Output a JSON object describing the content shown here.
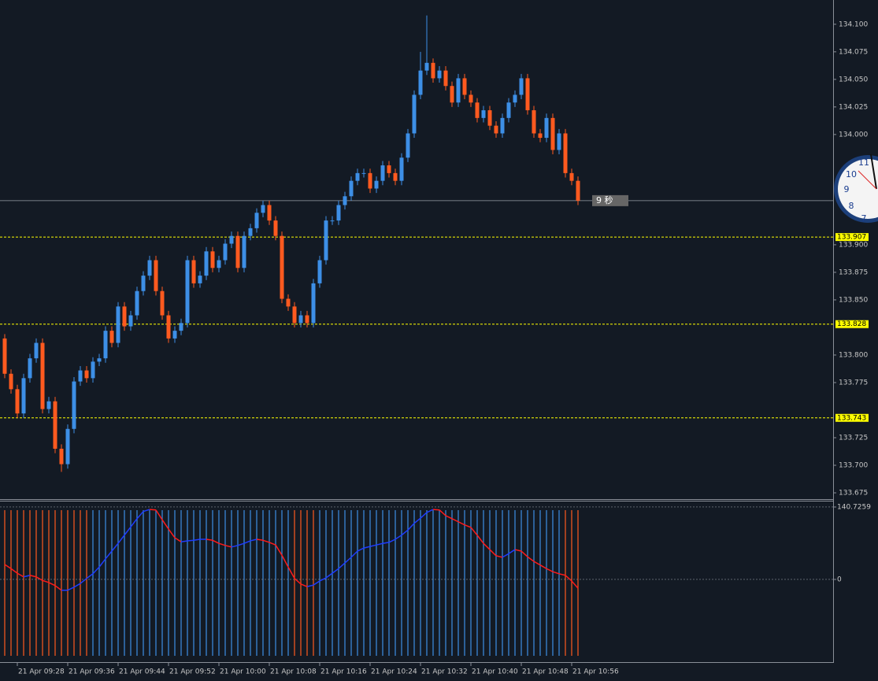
{
  "chart_data": [
    {
      "type": "candlestick",
      "categories": [
        null,
        null,
        "21 Apr 09:28",
        null,
        null,
        null,
        null,
        null,
        null,
        null,
        "21 Apr 09:36",
        null,
        null,
        null,
        null,
        null,
        null,
        null,
        "21 Apr 09:44",
        null,
        null,
        null,
        null,
        null,
        null,
        null,
        "21 Apr 09:52",
        null,
        null,
        null,
        null,
        null,
        null,
        null,
        "21 Apr 10:00",
        null,
        null,
        null,
        null,
        null,
        null,
        null,
        "21 Apr 10:08",
        null,
        null,
        null,
        null,
        null,
        null,
        null,
        "21 Apr 10:16",
        null,
        null,
        null,
        null,
        null,
        null,
        null,
        "21 Apr 10:24",
        null,
        null,
        null,
        null,
        null,
        null,
        null,
        "21 Apr 10:32",
        null,
        null,
        null,
        null,
        null,
        null,
        null,
        "21 Apr 10:40",
        null,
        null,
        null,
        null,
        null,
        null,
        null,
        "21 Apr 10:48",
        null,
        null,
        null,
        null,
        null,
        null,
        null,
        "21 Apr 10:56",
        null
      ],
      "open": [
        133.815,
        133.783,
        133.769,
        133.747,
        133.779,
        133.797,
        133.811,
        133.751,
        133.758,
        133.715,
        133.701,
        133.733,
        133.776,
        133.786,
        133.779,
        133.794,
        133.797,
        133.822,
        133.811,
        133.844,
        133.826,
        133.836,
        133.858,
        133.872,
        133.886,
        133.858,
        133.836,
        133.815,
        133.822,
        133.829,
        133.886,
        133.865,
        133.872,
        133.894,
        133.879,
        133.886,
        133.901,
        133.908,
        133.879,
        133.908,
        133.915,
        133.929,
        133.936,
        133.922,
        133.908,
        133.851,
        133.844,
        133.829,
        133.836,
        133.829,
        133.865,
        133.886,
        133.922,
        133.922,
        133.936,
        133.944,
        133.958,
        133.965,
        133.965,
        133.951,
        133.958,
        133.972,
        133.965,
        133.958,
        133.979,
        134.001,
        134.036,
        134.058,
        134.065,
        134.051,
        134.058,
        134.044,
        134.029,
        134.051,
        134.036,
        134.029,
        134.015,
        134.022,
        134.008,
        134.001,
        134.015,
        134.029,
        134.036,
        134.051,
        134.022,
        134.001,
        133.997,
        134.015,
        133.986,
        134.001,
        133.965,
        133.958
      ],
      "high": [
        133.819,
        133.787,
        133.773,
        133.783,
        133.801,
        133.815,
        133.815,
        133.762,
        133.762,
        133.719,
        133.737,
        133.78,
        133.79,
        133.79,
        133.798,
        133.801,
        133.826,
        133.826,
        133.848,
        133.848,
        133.84,
        133.862,
        133.876,
        133.89,
        133.89,
        133.862,
        133.84,
        133.826,
        133.833,
        133.89,
        133.89,
        133.876,
        133.898,
        133.898,
        133.89,
        133.905,
        133.912,
        133.912,
        133.912,
        133.919,
        133.933,
        133.94,
        133.94,
        133.926,
        133.912,
        133.855,
        133.848,
        133.84,
        133.84,
        133.869,
        133.89,
        133.926,
        133.926,
        133.94,
        133.948,
        133.962,
        133.969,
        133.969,
        133.969,
        133.962,
        133.976,
        133.976,
        133.969,
        133.983,
        134.005,
        134.04,
        134.075,
        134.108,
        134.069,
        134.062,
        134.062,
        134.048,
        134.055,
        134.055,
        134.04,
        134.033,
        134.026,
        134.026,
        134.012,
        134.019,
        134.033,
        134.04,
        134.055,
        134.055,
        134.026,
        134.005,
        134.019,
        134.019,
        134.005,
        134.005,
        133.969,
        133.962
      ],
      "low": [
        133.779,
        133.765,
        133.743,
        133.743,
        133.775,
        133.793,
        133.747,
        133.747,
        133.711,
        133.694,
        133.697,
        133.729,
        133.772,
        133.775,
        133.775,
        133.79,
        133.793,
        133.807,
        133.807,
        133.822,
        133.822,
        133.832,
        133.854,
        133.868,
        133.854,
        133.832,
        133.811,
        133.811,
        133.818,
        133.825,
        133.861,
        133.861,
        133.868,
        133.875,
        133.875,
        133.882,
        133.897,
        133.875,
        133.875,
        133.904,
        133.911,
        133.925,
        133.918,
        133.904,
        133.847,
        133.84,
        133.825,
        133.825,
        133.825,
        133.825,
        133.861,
        133.882,
        133.918,
        133.918,
        133.932,
        133.94,
        133.954,
        133.961,
        133.947,
        133.947,
        133.954,
        133.961,
        133.954,
        133.954,
        133.975,
        133.997,
        134.032,
        134.054,
        134.047,
        134.047,
        134.04,
        134.025,
        134.025,
        134.032,
        134.025,
        134.011,
        134.011,
        134.004,
        133.997,
        133.997,
        134.011,
        134.025,
        134.032,
        134.018,
        133.997,
        133.993,
        133.993,
        133.982,
        133.982,
        133.961,
        133.954,
        133.936
      ],
      "close": [
        133.783,
        133.769,
        133.747,
        133.779,
        133.797,
        133.811,
        133.751,
        133.758,
        133.715,
        133.701,
        133.733,
        133.776,
        133.786,
        133.779,
        133.794,
        133.797,
        133.822,
        133.811,
        133.844,
        133.826,
        133.836,
        133.858,
        133.872,
        133.886,
        133.858,
        133.836,
        133.815,
        133.822,
        133.829,
        133.886,
        133.865,
        133.872,
        133.894,
        133.879,
        133.886,
        133.901,
        133.908,
        133.879,
        133.908,
        133.915,
        133.929,
        133.936,
        133.922,
        133.908,
        133.851,
        133.844,
        133.829,
        133.836,
        133.829,
        133.865,
        133.886,
        133.922,
        133.922,
        133.936,
        133.944,
        133.958,
        133.965,
        133.965,
        133.951,
        133.958,
        133.972,
        133.965,
        133.958,
        133.979,
        134.001,
        134.036,
        134.058,
        134.065,
        134.051,
        134.058,
        134.044,
        134.029,
        134.051,
        134.036,
        134.029,
        134.015,
        134.022,
        134.008,
        134.001,
        134.015,
        134.029,
        134.036,
        134.051,
        134.022,
        134.001,
        133.997,
        134.015,
        133.986,
        134.001,
        133.965,
        133.958,
        133.94
      ],
      "up_color": "#3d8fe6",
      "down_color": "#ff5a1f",
      "ylim": [
        133.67,
        134.122
      ],
      "yticks": [
        {
          "value": 134.1,
          "label": "134.100"
        },
        {
          "value": 134.075,
          "label": "134.075"
        },
        {
          "value": 134.05,
          "label": "134.050"
        },
        {
          "value": 134.025,
          "label": "134.025"
        },
        {
          "value": 134,
          "label": "134.000"
        },
        {
          "value": 133.9,
          "label": "133.900"
        },
        {
          "value": 133.875,
          "label": "133.875"
        },
        {
          "value": 133.85,
          "label": "133.850"
        },
        {
          "value": 133.8,
          "label": "133.800"
        },
        {
          "value": 133.775,
          "label": "133.775"
        },
        {
          "value": 133.725,
          "label": "133.725"
        },
        {
          "value": 133.7,
          "label": "133.700"
        },
        {
          "value": 133.675,
          "label": "133.675"
        }
      ],
      "levels": [
        {
          "value": 133.907,
          "label": "133.907"
        },
        {
          "value": 133.828,
          "label": "133.828"
        },
        {
          "value": 133.743,
          "label": "133.743"
        }
      ],
      "level_color": "#ffff00",
      "countdown_label": "9 秒"
    },
    {
      "type": "oscillator",
      "values": [
        29,
        21,
        12,
        5,
        8,
        5,
        -2,
        -6,
        -12,
        -21,
        -21,
        -15,
        -8,
        2,
        11,
        24,
        40,
        55,
        70,
        86,
        102,
        118,
        132,
        136,
        135,
        116,
        98,
        81,
        73,
        75,
        76,
        78,
        78,
        76,
        70,
        66,
        63,
        66,
        70,
        75,
        78,
        76,
        72,
        67,
        47,
        24,
        2,
        -9,
        -14,
        -11,
        -3,
        3,
        12,
        21,
        32,
        43,
        55,
        61,
        64,
        67,
        70,
        72,
        78,
        86,
        96,
        109,
        119,
        130,
        136,
        135,
        124,
        118,
        112,
        106,
        101,
        86,
        70,
        58,
        46,
        43,
        50,
        58,
        55,
        44,
        35,
        28,
        21,
        15,
        11,
        8,
        -3,
        -17
      ],
      "histogram_colors": [
        "#ff5a1f",
        "#ff5a1f",
        "#ff5a1f",
        "#ff5a1f",
        "#ff5a1f",
        "#ff5a1f",
        "#ff5a1f",
        "#ff5a1f",
        "#ff5a1f",
        "#ff5a1f",
        "#ff5a1f",
        "#ff5a1f",
        "#ff5a1f",
        "#ff5a1f",
        "#3d8fe6",
        "#3d8fe6",
        "#3d8fe6",
        "#3d8fe6",
        "#3d8fe6",
        "#3d8fe6",
        "#3d8fe6",
        "#3d8fe6",
        "#3d8fe6",
        "#3d8fe6",
        "#3d8fe6",
        "#3d8fe6",
        "#3d8fe6",
        "#3d8fe6",
        "#3d8fe6",
        "#3d8fe6",
        "#3d8fe6",
        "#3d8fe6",
        "#3d8fe6",
        "#3d8fe6",
        "#3d8fe6",
        "#3d8fe6",
        "#3d8fe6",
        "#3d8fe6",
        "#3d8fe6",
        "#3d8fe6",
        "#3d8fe6",
        "#3d8fe6",
        "#3d8fe6",
        "#3d8fe6",
        "#3d8fe6",
        "#3d8fe6",
        "#ff5a1f",
        "#ff5a1f",
        "#ff5a1f",
        "#ff5a1f",
        "#3d8fe6",
        "#3d8fe6",
        "#3d8fe6",
        "#3d8fe6",
        "#3d8fe6",
        "#3d8fe6",
        "#3d8fe6",
        "#3d8fe6",
        "#3d8fe6",
        "#3d8fe6",
        "#3d8fe6",
        "#3d8fe6",
        "#3d8fe6",
        "#3d8fe6",
        "#3d8fe6",
        "#3d8fe6",
        "#3d8fe6",
        "#3d8fe6",
        "#3d8fe6",
        "#3d8fe6",
        "#3d8fe6",
        "#3d8fe6",
        "#3d8fe6",
        "#3d8fe6",
        "#3d8fe6",
        "#3d8fe6",
        "#3d8fe6",
        "#3d8fe6",
        "#3d8fe6",
        "#3d8fe6",
        "#3d8fe6",
        "#3d8fe6",
        "#3d8fe6",
        "#3d8fe6",
        "#3d8fe6",
        "#3d8fe6",
        "#3d8fe6",
        "#3d8fe6",
        "#3d8fe6",
        "#ff5a1f",
        "#ff5a1f",
        "#ff5a1f"
      ],
      "up_color": "#1e3cff",
      "down_color": "#ff1a1a",
      "ylim": [
        -159.1,
        151.4
      ],
      "yticks": [
        140.7259,
        0
      ]
    }
  ],
  "clock": {
    "numerals": [
      "11",
      "10",
      "9",
      "8",
      "7"
    ]
  }
}
